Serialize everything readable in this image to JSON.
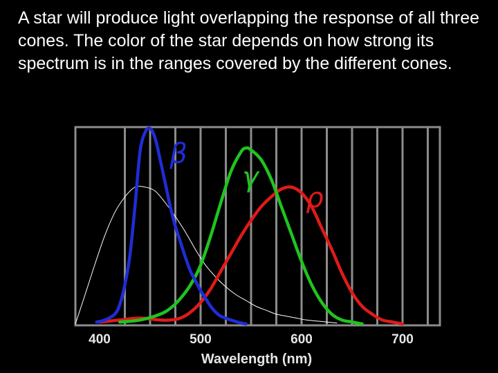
{
  "caption": "A star will produce light overlapping the response of all three cones.  The color of the star depends on how strong its spectrum is in the ranges covered by the different cones.",
  "chart_data": {
    "type": "line",
    "title": "",
    "xlabel": "Wavelength (nm)",
    "ylabel": "",
    "xlim": [
      376,
      737
    ],
    "ylim": [
      0,
      1
    ],
    "x_ticks": [
      400,
      500,
      600,
      700
    ],
    "x_tick_labels": [
      "400",
      "500",
      "600",
      "700"
    ],
    "grid": true,
    "colors": {
      "background": "#000000",
      "frame": "#8c8c8c",
      "grid": "#8c8c8c",
      "text": "#e6e6e6"
    },
    "series": [
      {
        "name": "β",
        "color": "#1f2dd6",
        "x": [
          397,
          405,
          415,
          420,
          425,
          430,
          435,
          440,
          445,
          450,
          455,
          460,
          465,
          470,
          475,
          480,
          485,
          490,
          495,
          500,
          505,
          510,
          515,
          520,
          530,
          540,
          545
        ],
        "y": [
          0.01,
          0.02,
          0.05,
          0.1,
          0.2,
          0.35,
          0.6,
          0.88,
          0.98,
          1.0,
          0.95,
          0.84,
          0.72,
          0.6,
          0.5,
          0.42,
          0.34,
          0.27,
          0.22,
          0.17,
          0.13,
          0.09,
          0.06,
          0.04,
          0.02,
          0.005,
          0.0
        ]
      },
      {
        "name": "γ",
        "color": "#1fc41f",
        "x": [
          420,
          440,
          460,
          470,
          480,
          490,
          500,
          510,
          520,
          530,
          540,
          545,
          550,
          560,
          570,
          580,
          590,
          600,
          610,
          620,
          630,
          640,
          650,
          660
        ],
        "y": [
          0.01,
          0.02,
          0.05,
          0.08,
          0.13,
          0.2,
          0.3,
          0.45,
          0.62,
          0.78,
          0.88,
          0.9,
          0.89,
          0.84,
          0.74,
          0.6,
          0.46,
          0.32,
          0.2,
          0.11,
          0.05,
          0.02,
          0.01,
          0.0
        ]
      },
      {
        "name": "ρ",
        "color": "#e01a1a",
        "x": [
          400,
          420,
          440,
          460,
          470,
          480,
          490,
          500,
          510,
          520,
          530,
          540,
          550,
          560,
          570,
          580,
          590,
          600,
          610,
          620,
          630,
          640,
          650,
          660,
          670,
          680,
          690,
          700
        ],
        "y": [
          0.01,
          0.02,
          0.03,
          0.02,
          0.02,
          0.03,
          0.06,
          0.11,
          0.18,
          0.27,
          0.36,
          0.45,
          0.53,
          0.6,
          0.65,
          0.69,
          0.7,
          0.67,
          0.6,
          0.49,
          0.38,
          0.26,
          0.16,
          0.09,
          0.05,
          0.02,
          0.01,
          0.0
        ]
      },
      {
        "name": "",
        "color": "#ffffff",
        "x": [
          376,
          385,
          395,
          405,
          415,
          425,
          435,
          445,
          455,
          465,
          475,
          485,
          495,
          505,
          515,
          525,
          535,
          545,
          555,
          565,
          575,
          585,
          595,
          605,
          615,
          625,
          635
        ],
        "y": [
          0.0,
          0.14,
          0.3,
          0.45,
          0.57,
          0.65,
          0.7,
          0.7,
          0.68,
          0.62,
          0.55,
          0.47,
          0.38,
          0.3,
          0.24,
          0.19,
          0.15,
          0.12,
          0.09,
          0.07,
          0.05,
          0.04,
          0.03,
          0.02,
          0.015,
          0.01,
          0.005
        ]
      }
    ]
  }
}
